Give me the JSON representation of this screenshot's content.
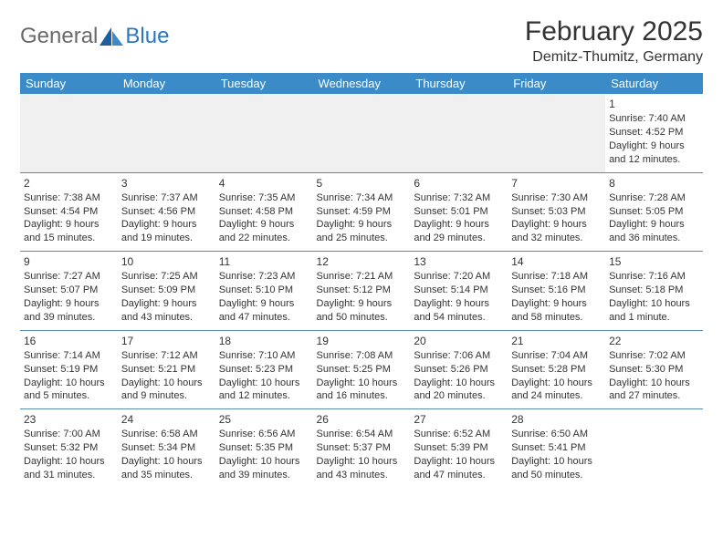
{
  "colors": {
    "header_bg": "#3c8bc9",
    "header_text": "#ffffff",
    "cell_border": "#5a8bb0",
    "body_text": "#333333",
    "logo_gray": "#6a6a6a",
    "logo_blue": "#2b78c2",
    "empty_row_bg": "#f0f0f0"
  },
  "logo": {
    "part1": "General",
    "part2": "Blue"
  },
  "title": "February 2025",
  "location": "Demitz-Thumitz, Germany",
  "weekday_labels": [
    "Sunday",
    "Monday",
    "Tuesday",
    "Wednesday",
    "Thursday",
    "Friday",
    "Saturday"
  ],
  "rows": [
    [
      null,
      null,
      null,
      null,
      null,
      null,
      {
        "d": "1",
        "sr": "Sunrise: 7:40 AM",
        "ss": "Sunset: 4:52 PM",
        "dl": "Daylight: 9 hours and 12 minutes."
      }
    ],
    [
      {
        "d": "2",
        "sr": "Sunrise: 7:38 AM",
        "ss": "Sunset: 4:54 PM",
        "dl": "Daylight: 9 hours and 15 minutes."
      },
      {
        "d": "3",
        "sr": "Sunrise: 7:37 AM",
        "ss": "Sunset: 4:56 PM",
        "dl": "Daylight: 9 hours and 19 minutes."
      },
      {
        "d": "4",
        "sr": "Sunrise: 7:35 AM",
        "ss": "Sunset: 4:58 PM",
        "dl": "Daylight: 9 hours and 22 minutes."
      },
      {
        "d": "5",
        "sr": "Sunrise: 7:34 AM",
        "ss": "Sunset: 4:59 PM",
        "dl": "Daylight: 9 hours and 25 minutes."
      },
      {
        "d": "6",
        "sr": "Sunrise: 7:32 AM",
        "ss": "Sunset: 5:01 PM",
        "dl": "Daylight: 9 hours and 29 minutes."
      },
      {
        "d": "7",
        "sr": "Sunrise: 7:30 AM",
        "ss": "Sunset: 5:03 PM",
        "dl": "Daylight: 9 hours and 32 minutes."
      },
      {
        "d": "8",
        "sr": "Sunrise: 7:28 AM",
        "ss": "Sunset: 5:05 PM",
        "dl": "Daylight: 9 hours and 36 minutes."
      }
    ],
    [
      {
        "d": "9",
        "sr": "Sunrise: 7:27 AM",
        "ss": "Sunset: 5:07 PM",
        "dl": "Daylight: 9 hours and 39 minutes."
      },
      {
        "d": "10",
        "sr": "Sunrise: 7:25 AM",
        "ss": "Sunset: 5:09 PM",
        "dl": "Daylight: 9 hours and 43 minutes."
      },
      {
        "d": "11",
        "sr": "Sunrise: 7:23 AM",
        "ss": "Sunset: 5:10 PM",
        "dl": "Daylight: 9 hours and 47 minutes."
      },
      {
        "d": "12",
        "sr": "Sunrise: 7:21 AM",
        "ss": "Sunset: 5:12 PM",
        "dl": "Daylight: 9 hours and 50 minutes."
      },
      {
        "d": "13",
        "sr": "Sunrise: 7:20 AM",
        "ss": "Sunset: 5:14 PM",
        "dl": "Daylight: 9 hours and 54 minutes."
      },
      {
        "d": "14",
        "sr": "Sunrise: 7:18 AM",
        "ss": "Sunset: 5:16 PM",
        "dl": "Daylight: 9 hours and 58 minutes."
      },
      {
        "d": "15",
        "sr": "Sunrise: 7:16 AM",
        "ss": "Sunset: 5:18 PM",
        "dl": "Daylight: 10 hours and 1 minute."
      }
    ],
    [
      {
        "d": "16",
        "sr": "Sunrise: 7:14 AM",
        "ss": "Sunset: 5:19 PM",
        "dl": "Daylight: 10 hours and 5 minutes."
      },
      {
        "d": "17",
        "sr": "Sunrise: 7:12 AM",
        "ss": "Sunset: 5:21 PM",
        "dl": "Daylight: 10 hours and 9 minutes."
      },
      {
        "d": "18",
        "sr": "Sunrise: 7:10 AM",
        "ss": "Sunset: 5:23 PM",
        "dl": "Daylight: 10 hours and 12 minutes."
      },
      {
        "d": "19",
        "sr": "Sunrise: 7:08 AM",
        "ss": "Sunset: 5:25 PM",
        "dl": "Daylight: 10 hours and 16 minutes."
      },
      {
        "d": "20",
        "sr": "Sunrise: 7:06 AM",
        "ss": "Sunset: 5:26 PM",
        "dl": "Daylight: 10 hours and 20 minutes."
      },
      {
        "d": "21",
        "sr": "Sunrise: 7:04 AM",
        "ss": "Sunset: 5:28 PM",
        "dl": "Daylight: 10 hours and 24 minutes."
      },
      {
        "d": "22",
        "sr": "Sunrise: 7:02 AM",
        "ss": "Sunset: 5:30 PM",
        "dl": "Daylight: 10 hours and 27 minutes."
      }
    ],
    [
      {
        "d": "23",
        "sr": "Sunrise: 7:00 AM",
        "ss": "Sunset: 5:32 PM",
        "dl": "Daylight: 10 hours and 31 minutes."
      },
      {
        "d": "24",
        "sr": "Sunrise: 6:58 AM",
        "ss": "Sunset: 5:34 PM",
        "dl": "Daylight: 10 hours and 35 minutes."
      },
      {
        "d": "25",
        "sr": "Sunrise: 6:56 AM",
        "ss": "Sunset: 5:35 PM",
        "dl": "Daylight: 10 hours and 39 minutes."
      },
      {
        "d": "26",
        "sr": "Sunrise: 6:54 AM",
        "ss": "Sunset: 5:37 PM",
        "dl": "Daylight: 10 hours and 43 minutes."
      },
      {
        "d": "27",
        "sr": "Sunrise: 6:52 AM",
        "ss": "Sunset: 5:39 PM",
        "dl": "Daylight: 10 hours and 47 minutes."
      },
      {
        "d": "28",
        "sr": "Sunrise: 6:50 AM",
        "ss": "Sunset: 5:41 PM",
        "dl": "Daylight: 10 hours and 50 minutes."
      },
      null
    ]
  ]
}
